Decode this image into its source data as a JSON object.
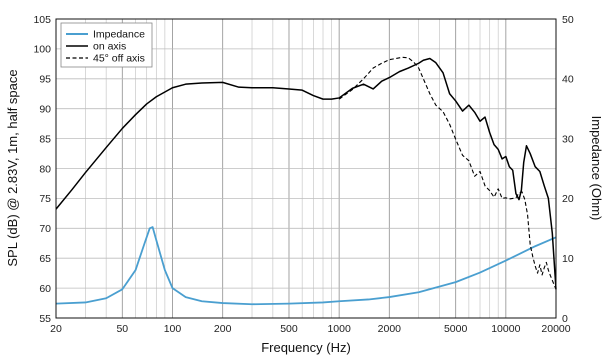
{
  "chart_data": {
    "type": "line",
    "xscale": "log",
    "xlabel": "Frequency (Hz)",
    "ylabel_left": "SPL (dB) @ 2.83V, 1m, half space",
    "ylabel_right": "Impedance (Ohm)",
    "xlim": [
      20,
      20000
    ],
    "ylim_left": [
      55,
      105
    ],
    "ylim_right": [
      0,
      50
    ],
    "x_ticks": [
      {
        "value": 20,
        "label": "20"
      },
      {
        "value": 50,
        "label": "50"
      },
      {
        "value": 100,
        "label": "100"
      },
      {
        "value": 200,
        "label": "200"
      },
      {
        "value": 500,
        "label": "500"
      },
      {
        "value": 1000,
        "label": "1000"
      },
      {
        "value": 2000,
        "label": "2000"
      },
      {
        "value": 5000,
        "label": "5000"
      },
      {
        "value": 10000,
        "label": "10000"
      },
      {
        "value": 20000,
        "label": "20000"
      }
    ],
    "y_left_ticks": [
      "55",
      "60",
      "65",
      "70",
      "75",
      "80",
      "85",
      "90",
      "95",
      "100",
      "105"
    ],
    "y_right_ticks": [
      "0",
      "10",
      "20",
      "30",
      "40",
      "50"
    ],
    "grid": true,
    "legend_position": "top-left",
    "series": [
      {
        "name": "Impedance",
        "axis": "right",
        "color": "#4a9fd0",
        "style": "solid",
        "points": [
          [
            20,
            2.4
          ],
          [
            30,
            2.6
          ],
          [
            40,
            3.3
          ],
          [
            50,
            4.8
          ],
          [
            60,
            8.0
          ],
          [
            68,
            12.5
          ],
          [
            73,
            15.0
          ],
          [
            76,
            15.2
          ],
          [
            80,
            13.0
          ],
          [
            90,
            8.0
          ],
          [
            100,
            5.0
          ],
          [
            120,
            3.5
          ],
          [
            150,
            2.8
          ],
          [
            200,
            2.5
          ],
          [
            300,
            2.3
          ],
          [
            500,
            2.4
          ],
          [
            800,
            2.6
          ],
          [
            1000,
            2.8
          ],
          [
            1500,
            3.1
          ],
          [
            2000,
            3.5
          ],
          [
            3000,
            4.3
          ],
          [
            5000,
            6.0
          ],
          [
            7000,
            7.6
          ],
          [
            10000,
            9.6
          ],
          [
            15000,
            12.0
          ],
          [
            20000,
            13.5
          ]
        ]
      },
      {
        "name": "on axis",
        "axis": "left",
        "color": "#000000",
        "style": "solid",
        "points": [
          [
            20,
            73.2
          ],
          [
            25,
            76.5
          ],
          [
            30,
            79.3
          ],
          [
            40,
            83.5
          ],
          [
            50,
            86.7
          ],
          [
            60,
            89.0
          ],
          [
            70,
            90.8
          ],
          [
            80,
            92.0
          ],
          [
            100,
            93.5
          ],
          [
            120,
            94.1
          ],
          [
            150,
            94.3
          ],
          [
            200,
            94.4
          ],
          [
            250,
            93.6
          ],
          [
            300,
            93.5
          ],
          [
            400,
            93.5
          ],
          [
            500,
            93.3
          ],
          [
            600,
            93.1
          ],
          [
            700,
            92.2
          ],
          [
            800,
            91.6
          ],
          [
            900,
            91.6
          ],
          [
            1000,
            91.8
          ],
          [
            1200,
            93.4
          ],
          [
            1400,
            94.1
          ],
          [
            1600,
            93.3
          ],
          [
            1800,
            94.6
          ],
          [
            2000,
            95.2
          ],
          [
            2300,
            96.2
          ],
          [
            2600,
            96.8
          ],
          [
            3000,
            97.6
          ],
          [
            3200,
            98.1
          ],
          [
            3500,
            98.4
          ],
          [
            3800,
            97.7
          ],
          [
            4200,
            96.0
          ],
          [
            4600,
            92.5
          ],
          [
            5000,
            91.3
          ],
          [
            5500,
            89.6
          ],
          [
            6000,
            90.6
          ],
          [
            6500,
            89.4
          ],
          [
            7000,
            87.9
          ],
          [
            7500,
            88.6
          ],
          [
            8000,
            86.0
          ],
          [
            8500,
            84.0
          ],
          [
            9000,
            83.2
          ],
          [
            9500,
            81.6
          ],
          [
            10000,
            82.0
          ],
          [
            10500,
            80.3
          ],
          [
            11000,
            79.7
          ],
          [
            11500,
            75.8
          ],
          [
            12000,
            74.8
          ],
          [
            12400,
            76.4
          ],
          [
            12800,
            81.0
          ],
          [
            13300,
            83.8
          ],
          [
            14000,
            82.5
          ],
          [
            15000,
            80.3
          ],
          [
            16000,
            79.5
          ],
          [
            17000,
            77.1
          ],
          [
            18000,
            75.0
          ],
          [
            19000,
            69.2
          ],
          [
            20000,
            59.8
          ]
        ]
      },
      {
        "name": "45° off axis",
        "axis": "left",
        "color": "#000000",
        "style": "dashed",
        "points": [
          [
            1000,
            91.6
          ],
          [
            1200,
            93.2
          ],
          [
            1400,
            95.0
          ],
          [
            1600,
            96.8
          ],
          [
            1800,
            97.6
          ],
          [
            2000,
            98.2
          ],
          [
            2200,
            98.4
          ],
          [
            2400,
            98.6
          ],
          [
            2600,
            98.5
          ],
          [
            2800,
            97.8
          ],
          [
            3000,
            96.8
          ],
          [
            3500,
            92.5
          ],
          [
            3800,
            90.6
          ],
          [
            4200,
            89.5
          ],
          [
            4600,
            87.4
          ],
          [
            5000,
            84.9
          ],
          [
            5500,
            82.2
          ],
          [
            6000,
            81.3
          ],
          [
            6500,
            78.7
          ],
          [
            7000,
            79.5
          ],
          [
            7500,
            77.1
          ],
          [
            8000,
            76.3
          ],
          [
            8500,
            75.2
          ],
          [
            9000,
            76.6
          ],
          [
            9500,
            75.0
          ],
          [
            10000,
            75.1
          ],
          [
            10500,
            74.9
          ],
          [
            11000,
            75.0
          ],
          [
            11500,
            75.1
          ],
          [
            12000,
            75.9
          ],
          [
            12500,
            76.1
          ],
          [
            13000,
            74.8
          ],
          [
            13500,
            72.3
          ],
          [
            14000,
            67.3
          ],
          [
            14500,
            65.3
          ],
          [
            15000,
            63.7
          ],
          [
            15500,
            62.5
          ],
          [
            16000,
            63.9
          ],
          [
            16500,
            62.2
          ],
          [
            17000,
            63.4
          ],
          [
            17500,
            64.3
          ],
          [
            18000,
            63.0
          ],
          [
            18500,
            62.1
          ],
          [
            19000,
            61.3
          ],
          [
            20000,
            59.8
          ]
        ]
      }
    ]
  }
}
